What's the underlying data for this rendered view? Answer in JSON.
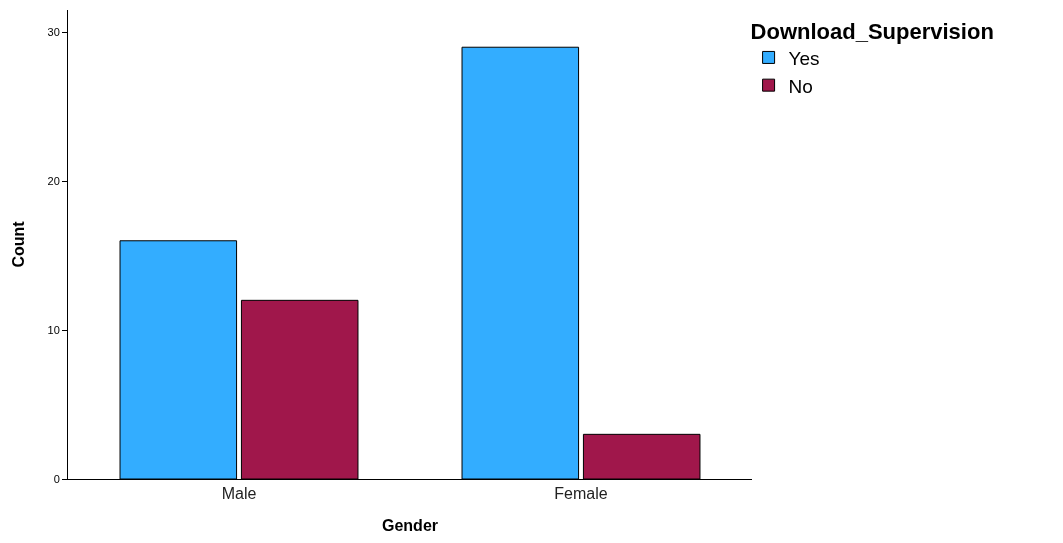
{
  "chart_data": {
    "type": "bar",
    "xlabel": "Gender",
    "ylabel": "Count",
    "legend_title": "Download_Supervision",
    "legend": "top right",
    "categories": [
      "Male",
      "Female"
    ],
    "series": [
      {
        "name": "Yes",
        "color": "#33adff",
        "values": [
          16,
          29
        ]
      },
      {
        "name": "No",
        "color": "#a0174b",
        "values": [
          12,
          3
        ]
      }
    ],
    "ylim": [
      0,
      31.5
    ],
    "yticks": [
      0,
      10,
      20,
      30
    ]
  }
}
